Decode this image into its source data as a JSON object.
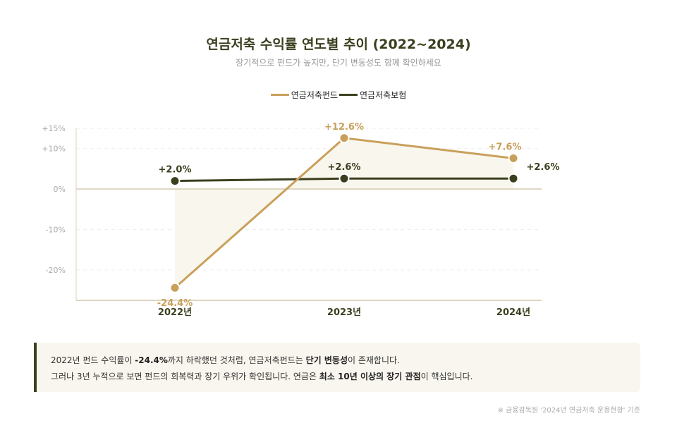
{
  "header": {
    "title": "연금저축 수익률 연도별 추이 (2022~2024)",
    "subtitle": "장기적으로 펀드가 높지만, 단기 변동성도 함께 확인하세요"
  },
  "chart_data": {
    "type": "line",
    "title": "연금저축 수익률 연도별 추이 (2022~2024)",
    "categories": [
      "2022년",
      "2023년",
      "2024년"
    ],
    "series": [
      {
        "name": "연금저축펀드",
        "values": [
          -24.4,
          12.6,
          7.6
        ],
        "labels": [
          "-24.4%",
          "+12.6%",
          "+7.6%"
        ],
        "color": "#c9a05a"
      },
      {
        "name": "연금저축보험",
        "values": [
          2.0,
          2.6,
          2.6
        ],
        "labels": [
          "+2.0%",
          "+2.6%",
          "+2.6%"
        ],
        "color": "#3a3f1e"
      }
    ],
    "yticks": [
      15,
      10,
      0,
      -10,
      -20
    ],
    "ytick_labels": [
      "+15%",
      "+10%",
      "0%",
      "-10%",
      "-20%"
    ],
    "ylim": [
      -27.5,
      15
    ],
    "grid": true,
    "legend": "top"
  },
  "note": {
    "line1": [
      {
        "t": "2022년 펀드 수익률이 "
      },
      {
        "t": "-24.4%",
        "b": true
      },
      {
        "t": "까지 하락했던 것처럼, 연금저축펀드는 "
      },
      {
        "t": "단기 변동성",
        "b": true
      },
      {
        "t": "이 존재합니다."
      }
    ],
    "line2": [
      {
        "t": "그러나 3년 누적으로 보면 펀드의 회복력과 장기 우위가 확인됩니다. 연금은 "
      },
      {
        "t": "최소 10년 이상의 장기 관점",
        "b": true
      },
      {
        "t": "이 핵심입니다."
      }
    ]
  },
  "source": "※ 금융감독원 '2024년 연금저축 운용현황' 기준"
}
